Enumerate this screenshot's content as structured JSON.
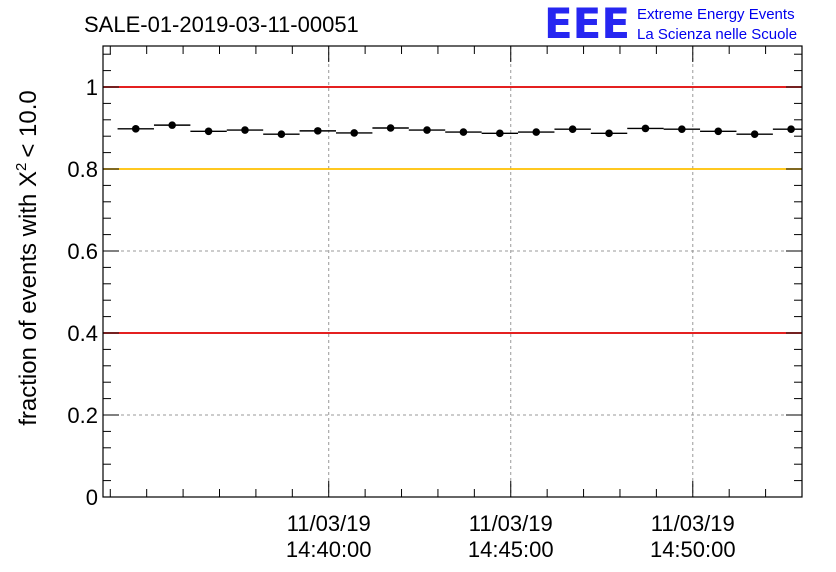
{
  "chart_data": {
    "type": "scatter",
    "title": "SALE-01-2019-03-11-00051",
    "ylabel_text": "fraction of events with",
    "ylabel_symbol": "X",
    "ylabel_exponent": "2",
    "ylabel_threshold": "< 10.0",
    "xlabel": "",
    "x_unit": "minutes",
    "xlim": [
      -6.2,
      13.0
    ],
    "ylim": [
      0,
      1.1
    ],
    "y_ticks": [
      0,
      0.2,
      0.4,
      0.6,
      0.8,
      1
    ],
    "y_tick_labels": [
      "0",
      "0.2",
      "0.4",
      "0.6",
      "0.8",
      "1"
    ],
    "x_ticks": [
      {
        "x": 0,
        "date": "11/03/19",
        "time": "14:40:00"
      },
      {
        "x": 5,
        "date": "11/03/19",
        "time": "14:45:00"
      },
      {
        "x": 10,
        "date": "11/03/19",
        "time": "14:50:00"
      }
    ],
    "grid": true,
    "reference_lines": [
      {
        "y": 1.0,
        "color": "#e00000"
      },
      {
        "y": 0.8,
        "color": "#ffc000"
      },
      {
        "y": 0.4,
        "color": "#e00000"
      }
    ],
    "bin_width": 1.0,
    "series": [
      {
        "x": [
          -5.3,
          -4.3,
          -3.3,
          -2.3,
          -1.3,
          -0.3,
          0.7,
          1.7,
          2.7,
          3.7,
          4.7,
          5.7,
          6.7,
          7.7,
          8.7,
          9.7,
          10.7,
          11.7,
          12.7
        ],
        "y": [
          0.898,
          0.907,
          0.892,
          0.895,
          0.885,
          0.893,
          0.888,
          0.9,
          0.895,
          0.89,
          0.887,
          0.89,
          0.897,
          0.887,
          0.899,
          0.897,
          0.892,
          0.885,
          0.897
        ]
      }
    ]
  },
  "logo": {
    "letters": "EEE",
    "line1": "Extreme Energy Events",
    "line2": "La Scienza nelle Scuole",
    "color": "#0000ee"
  }
}
